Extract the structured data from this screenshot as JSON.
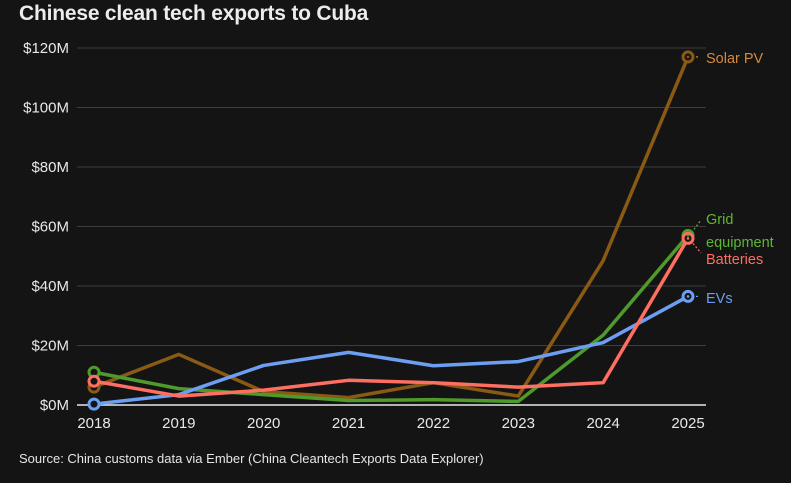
{
  "title": "Chinese clean tech exports to Cuba",
  "source": "Source: China customs data via Ember (China Cleantech Exports Data Explorer)",
  "chart_data": {
    "type": "line",
    "title": "Chinese clean tech exports to Cuba",
    "xlabel": "",
    "ylabel": "",
    "x": [
      "2018",
      "2019",
      "2020",
      "2021",
      "2022",
      "2023",
      "2024",
      "2025"
    ],
    "ylim": [
      0,
      120
    ],
    "yticks": [
      0,
      20,
      40,
      60,
      80,
      100,
      120
    ],
    "ytick_labels": [
      "$0M",
      "$20M",
      "$40M",
      "$60M",
      "$80M",
      "$100M",
      "$120M"
    ],
    "grid": true,
    "legend": "direct labels at line ends (right)",
    "series": [
      {
        "name": "Solar PV",
        "label_lines": [
          "Solar PV"
        ],
        "color": "#8a5a14",
        "label_color": "#d38a3f",
        "values": [
          6,
          17,
          4.5,
          2.5,
          7.5,
          3,
          48.5,
          117
        ]
      },
      {
        "name": "Grid equipment",
        "label_lines": [
          "Grid",
          "equipment"
        ],
        "color": "#4e9a2b",
        "label_color": "#5fb536",
        "values": [
          11,
          5.5,
          3.5,
          1.5,
          1.8,
          1.2,
          23.5,
          57
        ]
      },
      {
        "name": "Batteries",
        "label_lines": [
          "Batteries"
        ],
        "color": "#ff6f61",
        "label_color": "#ff6f61",
        "values": [
          8,
          3,
          5,
          8.3,
          7.5,
          6,
          7.5,
          56
        ]
      },
      {
        "name": "EVs",
        "label_lines": [
          "EVs"
        ],
        "color": "#6c9ef2",
        "label_color": "#6c9ef2",
        "values": [
          0.3,
          3.5,
          13.3,
          17.7,
          13.2,
          14.6,
          21,
          36.5
        ]
      }
    ]
  }
}
